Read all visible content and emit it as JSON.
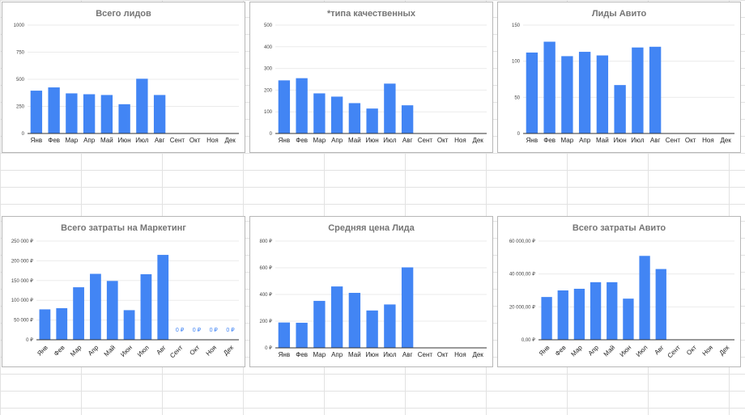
{
  "colors": {
    "bar": "#4285f4",
    "grid": "#ebebeb",
    "axis": "#333333",
    "sheet_line": "#e2e2e2",
    "zero_label": "#4285f4"
  },
  "months": [
    "Янв",
    "Фев",
    "Мар",
    "Апр",
    "Май",
    "Июн",
    "Июл",
    "Авг",
    "Сент",
    "Окт",
    "Ноя",
    "Дек"
  ],
  "chart_data": [
    {
      "type": "bar",
      "title": "Всего лидов",
      "categories": [
        "Янв",
        "Фев",
        "Мар",
        "Апр",
        "Май",
        "Июн",
        "Июл",
        "Авг",
        "Сент",
        "Окт",
        "Ноя",
        "Дек"
      ],
      "values": [
        395,
        425,
        370,
        362,
        355,
        270,
        505,
        355,
        null,
        null,
        null,
        null
      ],
      "ylim": [
        0,
        1000
      ],
      "yticks": [
        0,
        250,
        500,
        750,
        1000
      ],
      "ytick_labels": [
        "0",
        "250",
        "500",
        "750",
        "1000"
      ],
      "xlabel_rotation": 0,
      "grid": true,
      "legend": "none",
      "zero_labels": []
    },
    {
      "type": "bar",
      "title": "*типа качественных",
      "categories": [
        "Янв",
        "Фев",
        "Мар",
        "Апр",
        "Май",
        "Июн",
        "Июл",
        "Авг",
        "Сент",
        "Окт",
        "Ноя",
        "Дек"
      ],
      "values": [
        245,
        255,
        185,
        170,
        140,
        115,
        230,
        130,
        null,
        null,
        null,
        null
      ],
      "ylim": [
        0,
        500
      ],
      "yticks": [
        0,
        100,
        200,
        300,
        400,
        500
      ],
      "ytick_labels": [
        "0",
        "100",
        "200",
        "300",
        "400",
        "500"
      ],
      "xlabel_rotation": 0,
      "grid": true,
      "legend": "none",
      "zero_labels": []
    },
    {
      "type": "bar",
      "title": "Лиды Авито",
      "categories": [
        "Янв",
        "Фев",
        "Мар",
        "Апр",
        "Май",
        "Июн",
        "Июл",
        "Авг",
        "Сент",
        "Окт",
        "Ноя",
        "Дек"
      ],
      "values": [
        112,
        127,
        107,
        113,
        108,
        67,
        119,
        120,
        null,
        null,
        null,
        null
      ],
      "ylim": [
        0,
        150
      ],
      "yticks": [
        0,
        50,
        100,
        150
      ],
      "ytick_labels": [
        "0",
        "50",
        "100",
        "150"
      ],
      "xlabel_rotation": 0,
      "grid": true,
      "legend": "none",
      "zero_labels": []
    },
    {
      "type": "bar",
      "title": "Всего затраты на Маркетинг",
      "categories": [
        "Янв",
        "Фев",
        "Мар",
        "Апр",
        "Май",
        "Июн",
        "Июл",
        "Авг",
        "Сент",
        "Окт",
        "Ноя",
        "Дек"
      ],
      "values": [
        77000,
        80000,
        133000,
        167000,
        149000,
        75000,
        166000,
        215000,
        0,
        0,
        0,
        0
      ],
      "ylim": [
        0,
        250000
      ],
      "yticks": [
        0,
        50000,
        100000,
        150000,
        200000,
        250000
      ],
      "ytick_labels": [
        "0 ₽",
        "50 000 ₽",
        "100 000 ₽",
        "150 000 ₽",
        "200 000 ₽",
        "250 000 ₽"
      ],
      "xlabel_rotation": -45,
      "grid": true,
      "legend": "none",
      "zero_labels": [
        "0 ₽",
        "0 ₽",
        "0 ₽",
        "0 ₽"
      ]
    },
    {
      "type": "bar",
      "title": "Средняя цена Лида",
      "categories": [
        "Янв",
        "Фев",
        "Мар",
        "Апр",
        "Май",
        "Июн",
        "Июл",
        "Авг",
        "Сент",
        "Окт",
        "Ноя",
        "Дек"
      ],
      "values": [
        190,
        188,
        352,
        460,
        412,
        280,
        325,
        603,
        null,
        null,
        null,
        null
      ],
      "ylim": [
        0,
        800
      ],
      "yticks": [
        0,
        200,
        400,
        600,
        800
      ],
      "ytick_labels": [
        "0 ₽",
        "200 ₽",
        "400 ₽",
        "600 ₽",
        "800 ₽"
      ],
      "xlabel_rotation": 0,
      "grid": true,
      "legend": "none",
      "zero_labels": []
    },
    {
      "type": "bar",
      "title": "Всего затраты Авито",
      "categories": [
        "Янв",
        "Фев",
        "Мар",
        "Апр",
        "Май",
        "Июн",
        "Июл",
        "Авг",
        "Сент",
        "Окт",
        "Ноя",
        "Дек"
      ],
      "values": [
        26000,
        30000,
        31000,
        35000,
        35000,
        25000,
        51000,
        43000,
        null,
        null,
        null,
        null
      ],
      "ylim": [
        0,
        60000
      ],
      "yticks": [
        0,
        20000,
        40000,
        60000
      ],
      "ytick_labels": [
        "0,00 ₽",
        "20 000,00 ₽",
        "40 000,00 ₽",
        "60 000,00 ₽"
      ],
      "xlabel_rotation": -45,
      "grid": true,
      "legend": "none",
      "zero_labels": []
    }
  ]
}
